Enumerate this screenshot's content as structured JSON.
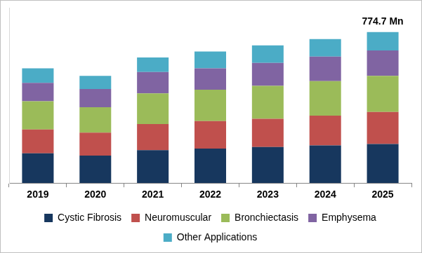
{
  "chart_data": {
    "type": "bar",
    "stacked": true,
    "categories": [
      "2019",
      "2020",
      "2021",
      "2022",
      "2023",
      "2024",
      "2025"
    ],
    "series": [
      {
        "name": "Cystic Fibrosis",
        "color": "#17375e",
        "values": [
          153,
          141,
          169,
          177,
          185,
          193,
          200.3
        ]
      },
      {
        "name": "Neuromuscular",
        "color": "#c0504d",
        "values": [
          122,
          118,
          134,
          141,
          145,
          153,
          165
        ]
      },
      {
        "name": "Bronchiectasis",
        "color": "#9bbb59",
        "values": [
          145,
          130,
          157,
          161,
          169,
          177,
          185
        ]
      },
      {
        "name": "Emphysema",
        "color": "#8064a2",
        "values": [
          94,
          94,
          110,
          110,
          118,
          126,
          130
        ]
      },
      {
        "name": "Other Applications",
        "color": "#4bacc6",
        "values": [
          75,
          67,
          75,
          86,
          90,
          90,
          94.4
        ]
      }
    ],
    "ylim": [
      0,
      900
    ],
    "tick_labels": "x",
    "grid": false,
    "legend": "bottom",
    "annotations": [
      {
        "text": "774.7 Mn",
        "category": "2025"
      }
    ]
  }
}
